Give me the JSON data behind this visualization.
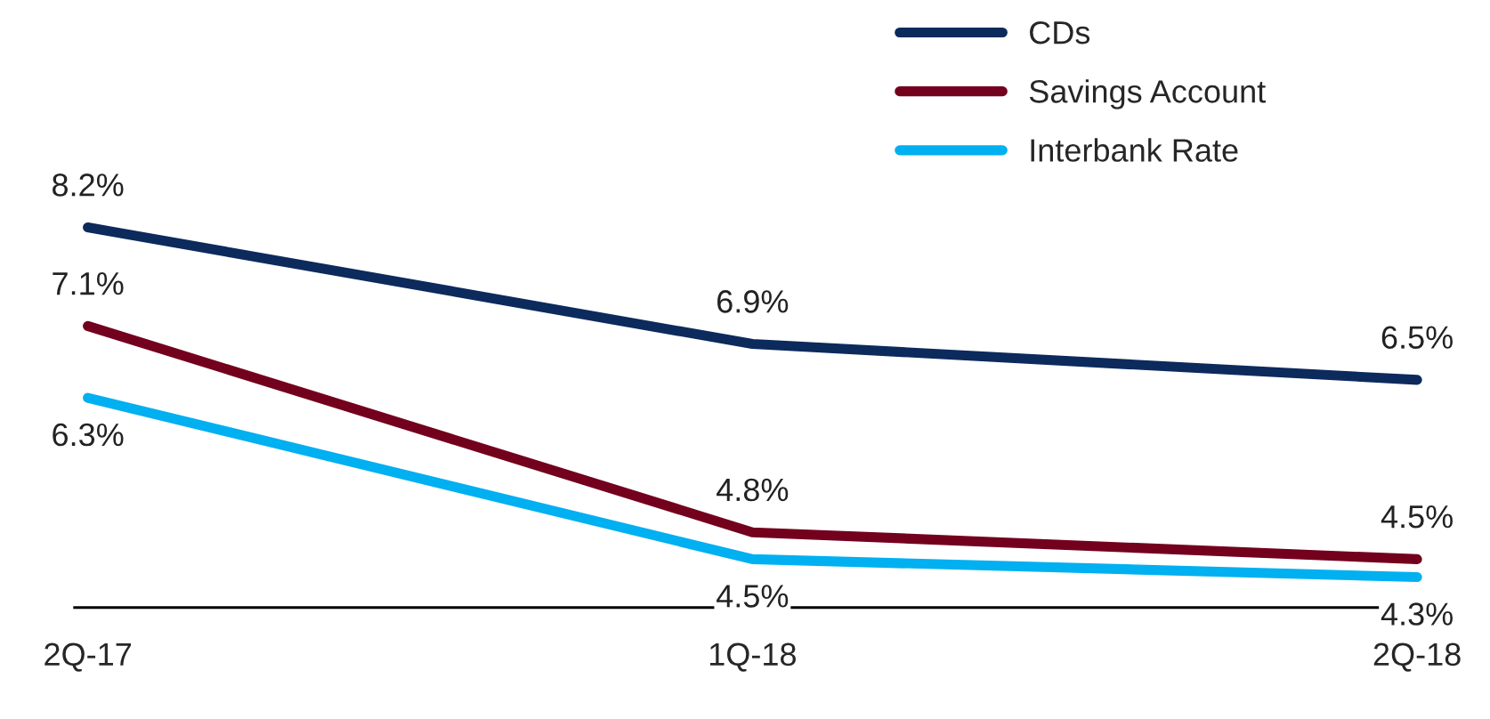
{
  "chart_data": {
    "type": "line",
    "categories": [
      "2Q-17",
      "1Q-18",
      "2Q-18"
    ],
    "series": [
      {
        "name": "CDs",
        "color": "#0c2a5c",
        "values": [
          8.2,
          6.9,
          6.5
        ],
        "value_labels": [
          "8.2%",
          "6.9%",
          "6.5%"
        ]
      },
      {
        "name": "Savings Account",
        "color": "#73001d",
        "values": [
          7.1,
          4.8,
          4.5
        ],
        "value_labels": [
          "7.1%",
          "4.8%",
          "4.5%"
        ]
      },
      {
        "name": "Interbank Rate",
        "color": "#00b0f0",
        "values": [
          6.3,
          4.5,
          4.3
        ],
        "value_labels": [
          "6.3%",
          "4.5%",
          "4.3%"
        ]
      }
    ],
    "tick_labels": "x",
    "legend": "top right",
    "grid": false,
    "marker": "none",
    "line_style": "solid"
  }
}
